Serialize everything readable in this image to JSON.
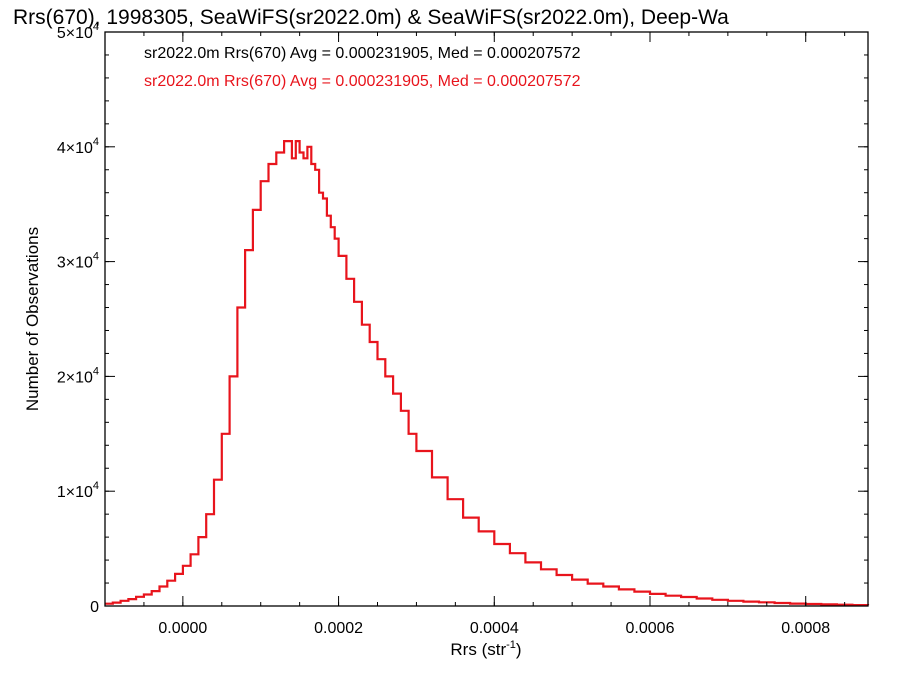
{
  "chart_data": {
    "type": "histogram",
    "title": "Rrs(670), 1998305, SeaWiFS(sr2022.0m) & SeaWiFS(sr2022.0m), Deep-Wa",
    "xlabel": {
      "base": "Rrs (str",
      "sup": "-1",
      "suffix": ")"
    },
    "ylabel": "Number of Observations",
    "xlim": [
      -0.0001,
      0.00088
    ],
    "ylim": [
      0,
      50000
    ],
    "x_ticks": [
      {
        "value": 0.0,
        "label": "0.0000"
      },
      {
        "value": 0.0002,
        "label": "0.0002"
      },
      {
        "value": 0.0004,
        "label": "0.0004"
      },
      {
        "value": 0.0006,
        "label": "0.0006"
      },
      {
        "value": 0.0008,
        "label": "0.0008"
      }
    ],
    "y_ticks": [
      {
        "value": 0,
        "label": "0",
        "sup": ""
      },
      {
        "value": 10000,
        "label": "1×10",
        "sup": "4"
      },
      {
        "value": 20000,
        "label": "2×10",
        "sup": "4"
      },
      {
        "value": 30000,
        "label": "3×10",
        "sup": "4"
      },
      {
        "value": 40000,
        "label": "4×10",
        "sup": "4"
      },
      {
        "value": 50000,
        "label": "5×10",
        "sup": "4"
      }
    ],
    "grid": false,
    "legend_placement": "top-left",
    "legend": [
      {
        "text": "sr2022.0m Rrs(670) Avg = 0.000231905, Med = 0.000207572",
        "color": "#000000"
      },
      {
        "text": "sr2022.0m Rrs(670) Avg = 0.000231905, Med = 0.000207572",
        "color": "#e8141c"
      }
    ],
    "series": [
      {
        "color": "#000000",
        "width": 1.2
      },
      {
        "color": "#e8141c",
        "width": 2.2
      }
    ],
    "x": [
      -0.0001,
      -9e-05,
      -8e-05,
      -7e-05,
      -6e-05,
      -5e-05,
      -4e-05,
      -3e-05,
      -2e-05,
      -1e-05,
      0.0,
      1e-05,
      2e-05,
      3e-05,
      4e-05,
      5e-05,
      6e-05,
      7e-05,
      8e-05,
      9e-05,
      0.0001,
      0.00011,
      0.00012,
      0.00013,
      0.00014,
      0.000145,
      0.00015,
      0.000155,
      0.00016,
      0.000165,
      0.00017,
      0.000175,
      0.00018,
      0.000185,
      0.00019,
      0.000195,
      0.0002,
      0.00021,
      0.00022,
      0.00023,
      0.00024,
      0.00025,
      0.00026,
      0.00027,
      0.00028,
      0.00029,
      0.0003,
      0.00032,
      0.00034,
      0.00036,
      0.00038,
      0.0004,
      0.00042,
      0.00044,
      0.00046,
      0.00048,
      0.0005,
      0.00052,
      0.00054,
      0.00056,
      0.00058,
      0.0006,
      0.00062,
      0.00064,
      0.00066,
      0.00068,
      0.0007,
      0.00072,
      0.00074,
      0.00076,
      0.00078,
      0.0008,
      0.00082,
      0.00084,
      0.00086,
      0.00088
    ],
    "values": [
      200,
      300,
      450,
      600,
      800,
      1000,
      1300,
      1700,
      2200,
      2800,
      3500,
      4500,
      6000,
      8000,
      11000,
      15000,
      20000,
      26000,
      31000,
      34500,
      37000,
      38500,
      39500,
      40500,
      39000,
      40500,
      39500,
      39000,
      40000,
      38500,
      38000,
      36000,
      35500,
      34000,
      33000,
      32000,
      30500,
      28500,
      26500,
      24500,
      23000,
      21500,
      20000,
      18500,
      17000,
      15000,
      13500,
      11200,
      9300,
      7700,
      6500,
      5400,
      4600,
      3800,
      3200,
      2700,
      2300,
      1950,
      1700,
      1450,
      1250,
      1050,
      900,
      780,
      650,
      540,
      450,
      380,
      320,
      260,
      210,
      170,
      140,
      110,
      80,
      60
    ]
  }
}
